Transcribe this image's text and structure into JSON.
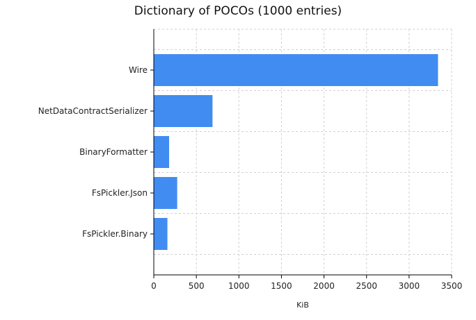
{
  "chart_data": {
    "type": "bar",
    "orientation": "horizontal",
    "title": "Dictionary of POCOs (1000 entries)",
    "xlabel": "KiB",
    "ylabel": "",
    "categories": [
      "Wire",
      "NetDataContractSerializer",
      "BinaryFormatter",
      "FsPickler.Json",
      "FsPickler.Binary"
    ],
    "values": [
      3340,
      690,
      180,
      275,
      160
    ],
    "xlim": [
      0,
      3500
    ],
    "xticks": [
      "0",
      "500",
      "1000",
      "1500",
      "2000",
      "2500",
      "3000",
      "3500"
    ],
    "grid": true,
    "bar_color": "#418cf0"
  }
}
